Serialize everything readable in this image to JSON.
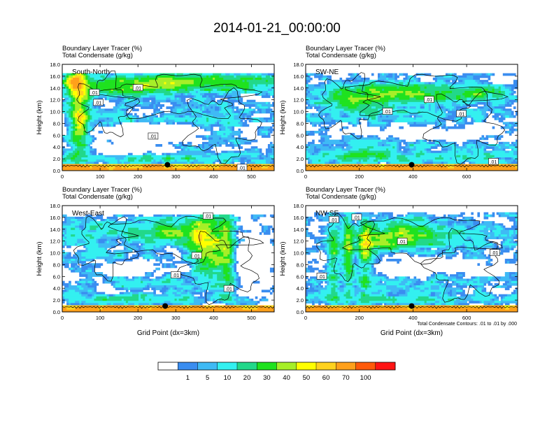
{
  "page": {
    "title": "2014-01-21_00:00:00",
    "footnote": "Total Condensate Contours: .01 to .01 by .000",
    "x_axis_label": "Grid Point (dx=3km)"
  },
  "colorbar": {
    "labels": [
      "1",
      "5",
      "10",
      "20",
      "30",
      "40",
      "50",
      "60",
      "70",
      "100"
    ],
    "colors": [
      "#ffffff",
      "#3a8df0",
      "#3fbaf5",
      "#33f0f0",
      "#22d88a",
      "#1fe21f",
      "#a6ef28",
      "#ffff00",
      "#ffd21e",
      "#ffa01b",
      "#ff5a0a",
      "#ff1414"
    ]
  },
  "chart_data": [
    {
      "type": "heatmap",
      "title_line1": "Boundary Layer Tracer   (%)",
      "title_line2": "Total Condensate   (g/kg)",
      "panel_label": "South-North",
      "ylabel": "Height (km)",
      "xlabel": "",
      "xlim": [
        0,
        560
      ],
      "ylim": [
        0,
        18
      ],
      "xticks": [
        0,
        100,
        200,
        300,
        400,
        500
      ],
      "yticks": [
        "0.0",
        "2.0",
        "4.0",
        "6.0",
        "8.0",
        "10.0",
        "12.0",
        "14.0",
        "16.0",
        "18.0"
      ],
      "contour_labels": [
        {
          "text": ".01",
          "x": 85,
          "y": 13.2
        },
        {
          "text": ".01",
          "x": 95,
          "y": 11.5
        },
        {
          "text": ".01",
          "x": 200,
          "y": 14.0
        },
        {
          "text": ".01",
          "x": 240,
          "y": 5.8
        },
        {
          "text": ".01",
          "x": 475,
          "y": 0.5
        }
      ],
      "marker": {
        "x": 278,
        "y": 1.0
      }
    },
    {
      "type": "heatmap",
      "title_line1": "Boundary Layer Tracer   (%)",
      "title_line2": "Total Condensate   (g/kg)",
      "panel_label": "SW-NE",
      "ylabel": "Height (km)",
      "xlabel": "",
      "xlim": [
        0,
        790
      ],
      "ylim": [
        0,
        18
      ],
      "xticks": [
        0,
        200,
        400,
        600
      ],
      "yticks": [
        "0.0",
        "2.0",
        "4.0",
        "6.0",
        "8.0",
        "10.0",
        "12.0",
        "14.0",
        "16.0",
        "18.0"
      ],
      "contour_labels": [
        {
          "text": ".01",
          "x": 305,
          "y": 10.0
        },
        {
          "text": ".01",
          "x": 460,
          "y": 12.0
        },
        {
          "text": ".01",
          "x": 580,
          "y": 9.6
        },
        {
          "text": ".01",
          "x": 700,
          "y": 1.5
        }
      ],
      "marker": {
        "x": 395,
        "y": 1.0
      }
    },
    {
      "type": "heatmap",
      "title_line1": "Boundary Layer Tracer   (%)",
      "title_line2": "Total Condensate   (g/kg)",
      "panel_label": "West-East",
      "ylabel": "Height (km)",
      "xlabel": "Grid Point (dx=3km)",
      "xlim": [
        0,
        560
      ],
      "ylim": [
        0,
        18
      ],
      "xticks": [
        0,
        100,
        200,
        300,
        400,
        500
      ],
      "yticks": [
        "0.0",
        "2.0",
        "4.0",
        "6.0",
        "8.0",
        "10.0",
        "12.0",
        "14.0",
        "16.0",
        "18.0"
      ],
      "contour_labels": [
        {
          "text": ".01",
          "x": 385,
          "y": 16.2
        },
        {
          "text": ".01",
          "x": 355,
          "y": 9.5
        },
        {
          "text": ".01",
          "x": 300,
          "y": 6.2
        },
        {
          "text": ".01",
          "x": 440,
          "y": 3.9
        }
      ],
      "marker": {
        "x": 272,
        "y": 1.0
      }
    },
    {
      "type": "heatmap",
      "title_line1": "Boundary Layer Tracer   (%)",
      "title_line2": "Total Condensate   (g/kg)",
      "panel_label": "NW-SE",
      "ylabel": "Height (km)",
      "xlabel": "Grid Point (dx=3km)",
      "xlim": [
        0,
        790
      ],
      "ylim": [
        0,
        18
      ],
      "xticks": [
        0,
        200,
        400,
        600
      ],
      "yticks": [
        "0.0",
        "2.0",
        "4.0",
        "6.0",
        "8.0",
        "10.0",
        "12.0",
        "14.0",
        "16.0",
        "18.0"
      ],
      "contour_labels": [
        {
          "text": ".01",
          "x": 105,
          "y": 15.6
        },
        {
          "text": ".01",
          "x": 190,
          "y": 16.0
        },
        {
          "text": ".01",
          "x": 360,
          "y": 11.9
        },
        {
          "text": ".01",
          "x": 60,
          "y": 6.0
        },
        {
          "text": ".01",
          "x": 705,
          "y": 10.0
        }
      ],
      "marker": {
        "x": 395,
        "y": 1.0
      }
    }
  ]
}
